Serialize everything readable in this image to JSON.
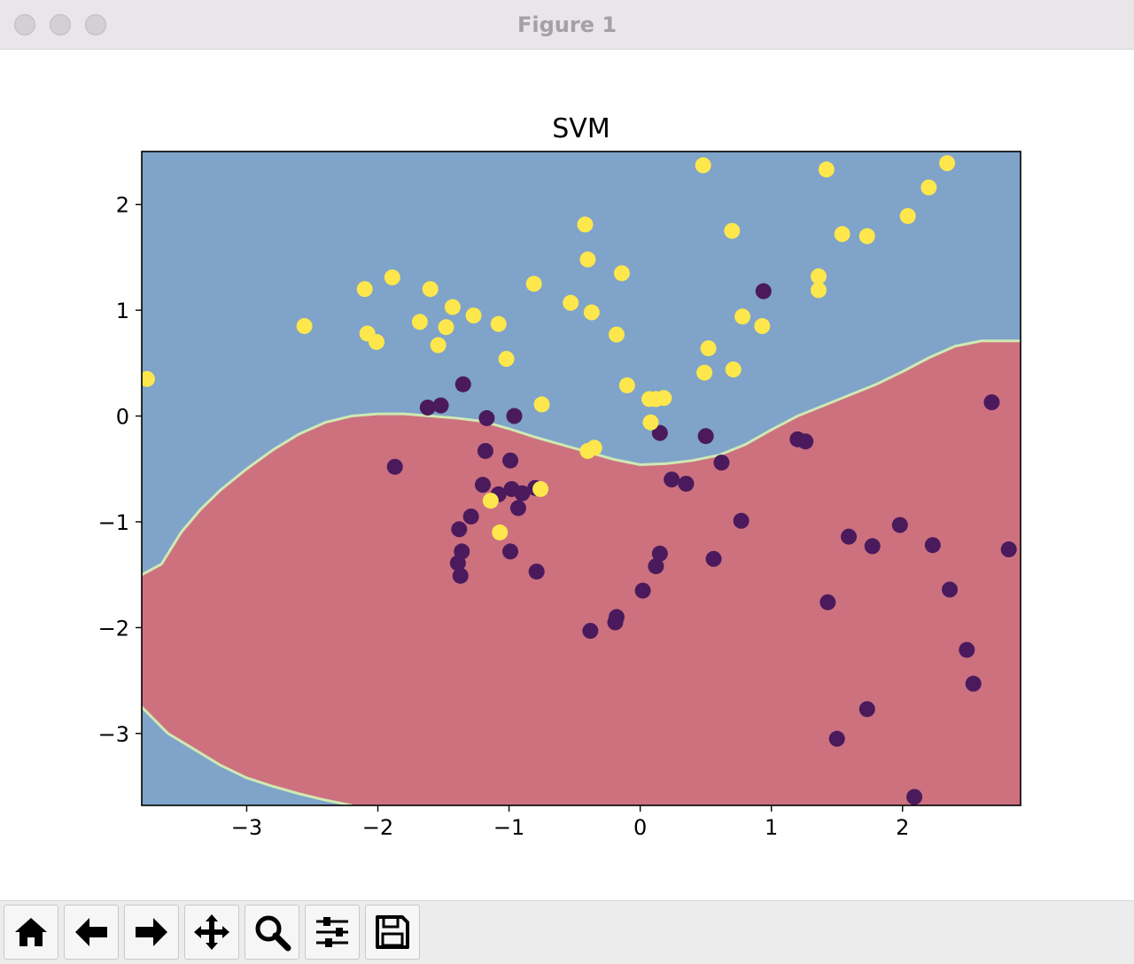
{
  "window": {
    "title": "Figure 1"
  },
  "toolbar": {
    "buttons": [
      {
        "name": "home-button",
        "icon": "home-icon"
      },
      {
        "name": "back-button",
        "icon": "arrow-left-icon"
      },
      {
        "name": "forward-button",
        "icon": "arrow-right-icon"
      },
      {
        "name": "pan-button",
        "icon": "move-icon"
      },
      {
        "name": "zoom-button",
        "icon": "magnifier-icon"
      },
      {
        "name": "configure-subplots-button",
        "icon": "sliders-icon"
      },
      {
        "name": "save-button",
        "icon": "floppy-disk-icon"
      }
    ]
  },
  "colors": {
    "region_positive": "#7fa3c9",
    "region_negative": "#cd717f",
    "boundary": "#cfe9b3",
    "class_0": "#4a1a5c",
    "class_1": "#fde74c"
  },
  "chart_data": {
    "type": "scatter",
    "title": "SVM",
    "xlabel": "",
    "ylabel": "",
    "xlim": [
      -3.8,
      2.9
    ],
    "ylim": [
      -3.68,
      2.5
    ],
    "xticks": [
      -3,
      -2,
      -1,
      0,
      1,
      2
    ],
    "yticks": [
      -3,
      -2,
      -1,
      0,
      1,
      2
    ],
    "xtick_labels": [
      "−3",
      "−2",
      "−1",
      "0",
      "1",
      "2"
    ],
    "ytick_labels": [
      "−3",
      "−2",
      "−1",
      "0",
      "1",
      "2"
    ],
    "grid": false,
    "background_regions": [
      {
        "class": 1,
        "color": "#7fa3c9",
        "label": "upper and lower-left region"
      },
      {
        "class": 0,
        "color": "#cd717f",
        "label": "middle region"
      }
    ],
    "decision_boundary_upper": [
      [
        -3.8,
        -1.5
      ],
      [
        -3.65,
        -1.4
      ],
      [
        -3.5,
        -1.1
      ],
      [
        -3.35,
        -0.88
      ],
      [
        -3.2,
        -0.7
      ],
      [
        -3.0,
        -0.5
      ],
      [
        -2.8,
        -0.32
      ],
      [
        -2.6,
        -0.17
      ],
      [
        -2.4,
        -0.06
      ],
      [
        -2.2,
        0.0
      ],
      [
        -2.0,
        0.02
      ],
      [
        -1.8,
        0.02
      ],
      [
        -1.6,
        0.0
      ],
      [
        -1.4,
        -0.02
      ],
      [
        -1.2,
        -0.05
      ],
      [
        -1.0,
        -0.12
      ],
      [
        -0.8,
        -0.2
      ],
      [
        -0.6,
        -0.27
      ],
      [
        -0.4,
        -0.34
      ],
      [
        -0.2,
        -0.41
      ],
      [
        0.0,
        -0.46
      ],
      [
        0.2,
        -0.45
      ],
      [
        0.4,
        -0.42
      ],
      [
        0.6,
        -0.37
      ],
      [
        0.8,
        -0.27
      ],
      [
        1.0,
        -0.13
      ],
      [
        1.2,
        0.0
      ],
      [
        1.4,
        0.1
      ],
      [
        1.6,
        0.2
      ],
      [
        1.8,
        0.3
      ],
      [
        2.0,
        0.42
      ],
      [
        2.2,
        0.55
      ],
      [
        2.4,
        0.66
      ],
      [
        2.6,
        0.71
      ],
      [
        2.9,
        0.71
      ]
    ],
    "decision_boundary_lower": [
      [
        -3.8,
        -2.75
      ],
      [
        -3.6,
        -3.0
      ],
      [
        -3.4,
        -3.15
      ],
      [
        -3.2,
        -3.3
      ],
      [
        -3.0,
        -3.42
      ],
      [
        -2.8,
        -3.5
      ],
      [
        -2.6,
        -3.57
      ],
      [
        -2.4,
        -3.63
      ],
      [
        -2.2,
        -3.68
      ]
    ],
    "series": [
      {
        "class": 0,
        "color": "#4a1a5c",
        "points": [
          [
            -1.62,
            0.08
          ],
          [
            -1.52,
            0.1
          ],
          [
            -1.35,
            0.3
          ],
          [
            -1.17,
            -0.02
          ],
          [
            -0.96,
            0.0
          ],
          [
            -1.87,
            -0.48
          ],
          [
            -1.18,
            -0.33
          ],
          [
            -0.99,
            -0.42
          ],
          [
            -1.2,
            -0.65
          ],
          [
            -1.08,
            -0.74
          ],
          [
            -0.98,
            -0.69
          ],
          [
            -0.9,
            -0.73
          ],
          [
            -0.8,
            -0.68
          ],
          [
            -0.93,
            -0.87
          ],
          [
            -1.29,
            -0.95
          ],
          [
            -1.38,
            -1.07
          ],
          [
            -1.36,
            -1.28
          ],
          [
            -1.39,
            -1.39
          ],
          [
            -1.37,
            -1.51
          ],
          [
            -0.99,
            -1.28
          ],
          [
            -0.79,
            -1.47
          ],
          [
            0.15,
            -0.16
          ],
          [
            0.5,
            -0.19
          ],
          [
            0.62,
            -0.44
          ],
          [
            0.24,
            -0.6
          ],
          [
            0.35,
            -0.64
          ],
          [
            0.77,
            -0.99
          ],
          [
            0.15,
            -1.3
          ],
          [
            0.12,
            -1.42
          ],
          [
            0.56,
            -1.35
          ],
          [
            0.02,
            -1.65
          ],
          [
            -0.18,
            -1.9
          ],
          [
            -0.19,
            -1.95
          ],
          [
            -0.38,
            -2.03
          ],
          [
            0.94,
            1.18
          ],
          [
            1.2,
            -0.22
          ],
          [
            1.26,
            -0.24
          ],
          [
            1.43,
            -1.76
          ],
          [
            1.59,
            -1.14
          ],
          [
            1.77,
            -1.23
          ],
          [
            1.98,
            -1.03
          ],
          [
            2.23,
            -1.22
          ],
          [
            2.36,
            -1.64
          ],
          [
            2.49,
            -2.21
          ],
          [
            2.54,
            -2.53
          ],
          [
            1.5,
            -3.05
          ],
          [
            1.73,
            -2.77
          ],
          [
            2.09,
            -3.6
          ],
          [
            2.68,
            0.13
          ],
          [
            2.81,
            -1.26
          ]
        ]
      },
      {
        "class": 1,
        "color": "#fde74c",
        "points": [
          [
            -3.76,
            0.35
          ],
          [
            -2.56,
            0.85
          ],
          [
            -2.1,
            1.2
          ],
          [
            -1.89,
            1.31
          ],
          [
            -2.08,
            0.78
          ],
          [
            -2.01,
            0.7
          ],
          [
            -1.68,
            0.89
          ],
          [
            -1.6,
            1.2
          ],
          [
            -1.54,
            0.67
          ],
          [
            -1.48,
            0.84
          ],
          [
            -1.43,
            1.03
          ],
          [
            -1.27,
            0.95
          ],
          [
            -1.08,
            0.87
          ],
          [
            -1.02,
            0.54
          ],
          [
            -0.81,
            1.25
          ],
          [
            -0.53,
            1.07
          ],
          [
            -0.42,
            1.81
          ],
          [
            -0.4,
            1.48
          ],
          [
            -0.37,
            0.98
          ],
          [
            -0.14,
            1.35
          ],
          [
            -0.18,
            0.77
          ],
          [
            -0.1,
            0.29
          ],
          [
            -0.75,
            0.11
          ],
          [
            -0.76,
            -0.69
          ],
          [
            -0.4,
            -0.33
          ],
          [
            -0.35,
            -0.3
          ],
          [
            0.07,
            0.16
          ],
          [
            0.12,
            0.16
          ],
          [
            0.18,
            0.17
          ],
          [
            0.08,
            -0.06
          ],
          [
            0.48,
            2.37
          ],
          [
            0.7,
            1.75
          ],
          [
            0.52,
            0.64
          ],
          [
            0.49,
            0.41
          ],
          [
            0.71,
            0.44
          ],
          [
            0.78,
            0.94
          ],
          [
            0.93,
            0.85
          ],
          [
            1.36,
            1.32
          ],
          [
            1.36,
            1.19
          ],
          [
            1.42,
            2.33
          ],
          [
            1.54,
            1.72
          ],
          [
            1.73,
            1.7
          ],
          [
            2.04,
            1.89
          ],
          [
            2.2,
            2.16
          ],
          [
            2.34,
            2.39
          ],
          [
            -1.14,
            -0.8
          ],
          [
            -1.07,
            -1.1
          ]
        ]
      }
    ]
  }
}
